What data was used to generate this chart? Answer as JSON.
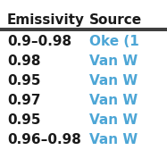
{
  "col1_header": "Emissivity",
  "col2_header": "Source",
  "rows": [
    [
      "0.9–0.98",
      "Oke (1"
    ],
    [
      "0.98",
      "Van W"
    ],
    [
      "0.95",
      "Van W"
    ],
    [
      "0.97",
      "Van W"
    ],
    [
      "0.95",
      "Van W"
    ],
    [
      "0.96–0.98",
      "Van W"
    ]
  ],
  "header_color": "#1a1a1a",
  "col2_color": "#4da6d6",
  "col1_color": "#1a1a1a",
  "bg_color": "#ffffff",
  "header_line_color": "#1a1a1a",
  "font_size": 11,
  "header_font_size": 11
}
